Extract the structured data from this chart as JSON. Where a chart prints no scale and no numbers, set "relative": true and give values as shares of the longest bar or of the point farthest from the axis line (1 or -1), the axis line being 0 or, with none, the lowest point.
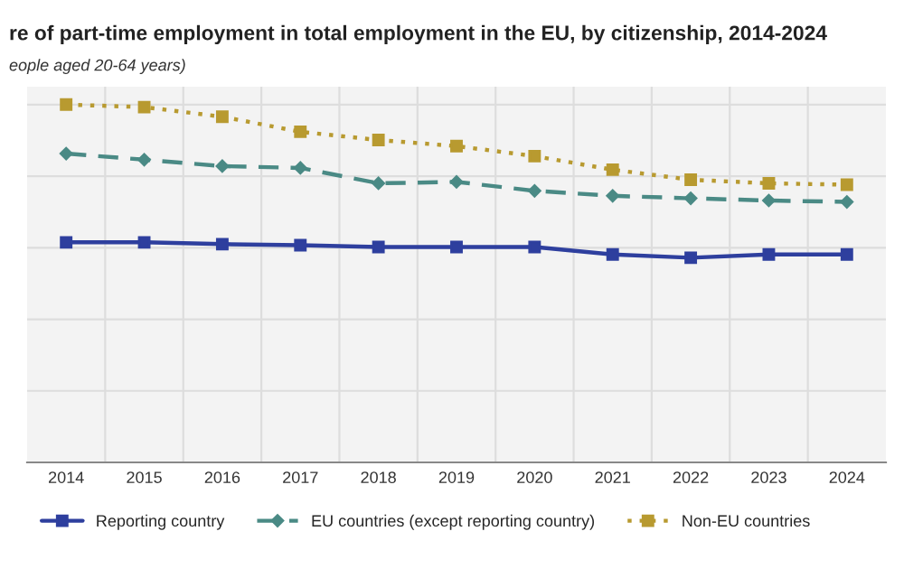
{
  "chart_data": {
    "type": "line",
    "title": "re of part-time employment in total employment in the EU, by citizenship, 2014-2024",
    "subtitle": "eople aged 20-64 years)",
    "categories": [
      "2014",
      "2015",
      "2016",
      "2017",
      "2018",
      "2019",
      "2020",
      "2021",
      "2022",
      "2023",
      "2024"
    ],
    "relative": true,
    "grid": true,
    "legend": "bottom",
    "tick_labels": "x",
    "series": [
      {
        "name": "Reporting country",
        "color": "#2e3f9e",
        "marker": "square",
        "line_style": "solid",
        "values": [
          0.615,
          0.615,
          0.61,
          0.607,
          0.602,
          0.602,
          0.602,
          0.581,
          0.572,
          0.581,
          0.581
        ]
      },
      {
        "name": "EU countries (except reporting country)",
        "color": "#4a8a85",
        "marker": "diamond",
        "line_style": "dashed",
        "values": [
          0.863,
          0.846,
          0.828,
          0.823,
          0.78,
          0.784,
          0.759,
          0.745,
          0.738,
          0.732,
          0.728
        ]
      },
      {
        "name": "Non-EU countries",
        "color": "#b89a30",
        "marker": "square",
        "line_style": "dotted",
        "values": [
          1,
          0.993,
          0.966,
          0.924,
          0.901,
          0.884,
          0.856,
          0.818,
          0.79,
          0.78,
          0.776
        ]
      }
    ]
  }
}
